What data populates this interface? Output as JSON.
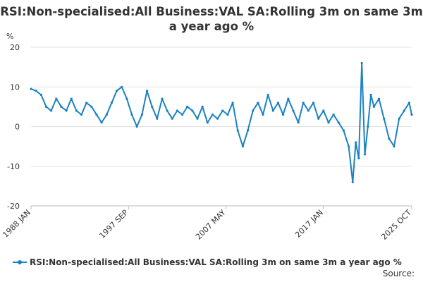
{
  "chart_data": {
    "type": "line",
    "title": "RSI:Non-specialised:All Business:VAL SA:Rolling 3m on same 3m a year ago %",
    "ylabel": "%",
    "xlabel": "",
    "ylim": [
      -20,
      20
    ],
    "yticks": [
      "20",
      "10",
      "0",
      "-10",
      "-20"
    ],
    "xticks": [
      {
        "label": "1988 JAN",
        "year": 1988.0
      },
      {
        "label": "1997 SEP",
        "year": 1997.67
      },
      {
        "label": "2007 MAY",
        "year": 2007.33
      },
      {
        "label": "2017 JAN",
        "year": 2017.0
      },
      {
        "label": "2025 OCT",
        "year": 2025.75
      }
    ],
    "grid": "horizontal",
    "legend_position": "bottom",
    "series": [
      {
        "name": "RSI:Non-specialised:All Business:VAL SA:Rolling 3m on same 3m a year ago %",
        "color": "#1a82c3",
        "x": [
          1988.0,
          1988.5,
          1989.0,
          1989.5,
          1990.0,
          1990.5,
          1991.0,
          1991.5,
          1992.0,
          1992.5,
          1993.0,
          1993.5,
          1994.0,
          1994.5,
          1995.0,
          1995.5,
          1996.0,
          1996.5,
          1997.0,
          1997.5,
          1998.0,
          1998.5,
          1999.0,
          1999.5,
          2000.0,
          2000.5,
          2001.0,
          2001.5,
          2002.0,
          2002.5,
          2003.0,
          2003.5,
          2004.0,
          2004.5,
          2005.0,
          2005.5,
          2006.0,
          2006.5,
          2007.0,
          2007.5,
          2008.0,
          2008.5,
          2009.0,
          2009.5,
          2010.0,
          2010.5,
          2011.0,
          2011.5,
          2012.0,
          2012.5,
          2013.0,
          2013.5,
          2014.0,
          2014.5,
          2015.0,
          2015.5,
          2016.0,
          2016.5,
          2017.0,
          2017.5,
          2018.0,
          2018.5,
          2019.0,
          2019.5,
          2019.9,
          2020.2,
          2020.5,
          2020.8,
          2021.1,
          2021.4,
          2021.7,
          2022.0,
          2022.5,
          2023.0,
          2023.5,
          2024.0,
          2024.5,
          2025.0,
          2025.5,
          2025.75
        ],
        "values": [
          9.5,
          9,
          8,
          5,
          4,
          7,
          5,
          4,
          7,
          4,
          3,
          6,
          5,
          3,
          1,
          3,
          6,
          9,
          10,
          7,
          3,
          0,
          3,
          9,
          5,
          2,
          7,
          4,
          2,
          4,
          3,
          5,
          4,
          2,
          5,
          1,
          3,
          2,
          4,
          3,
          6,
          -1,
          -5,
          -1,
          4,
          6,
          3,
          8,
          4,
          6,
          3,
          7,
          4,
          1,
          6,
          4,
          6,
          2,
          4,
          1,
          3,
          1,
          -1,
          -5,
          -14,
          -4,
          -8,
          16,
          -7,
          0,
          8,
          5,
          7,
          2,
          -3,
          -5,
          2,
          4,
          6,
          3
        ]
      }
    ]
  },
  "source_label": "Source:"
}
